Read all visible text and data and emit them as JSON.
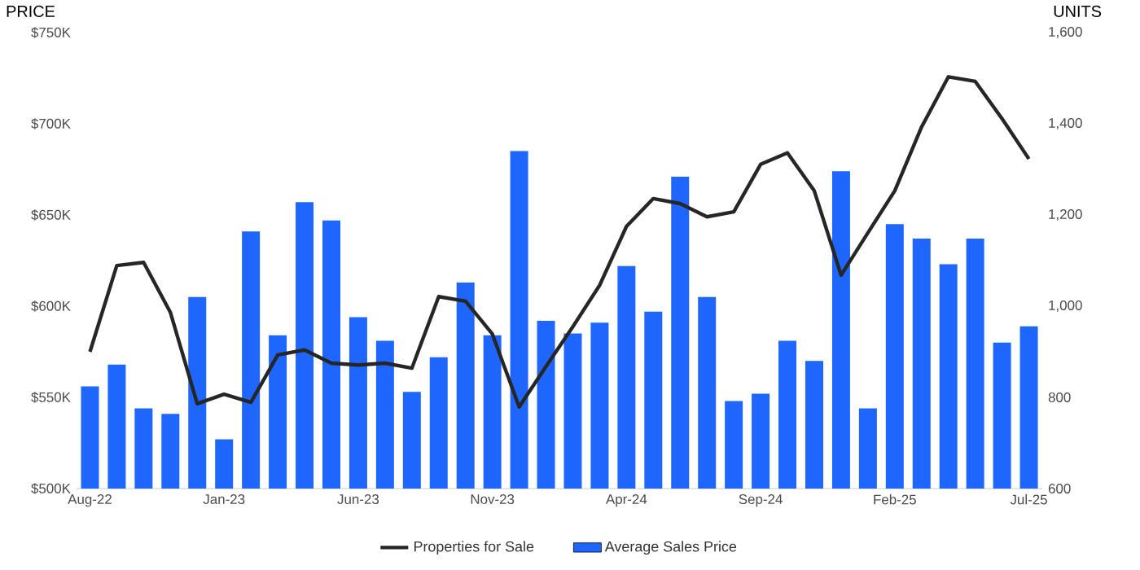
{
  "chart_data": {
    "type": "bar",
    "ylabel": "PRICE",
    "y2label": "UNITS",
    "categories": [
      "Aug-22",
      null,
      null,
      null,
      null,
      "Jan-23",
      null,
      null,
      null,
      null,
      "Jun-23",
      null,
      null,
      null,
      null,
      "Nov-23",
      null,
      null,
      null,
      null,
      "Apr-24",
      null,
      null,
      null,
      null,
      "Sep-24",
      null,
      null,
      null,
      null,
      "Feb-25",
      null,
      null,
      null,
      null,
      "Jul-25"
    ],
    "series": [
      {
        "name": "Properties for Sale",
        "type": "line",
        "axis": "y2",
        "color": "#262626",
        "values": [
          900,
          1089,
          1096,
          986,
          786,
          807,
          789,
          893,
          904,
          875,
          871,
          875,
          864,
          1021,
          1011,
          939,
          779,
          868,
          955,
          1046,
          1175,
          1236,
          1225,
          1196,
          1207,
          1311,
          1336,
          1253,
          1068,
          1161,
          1253,
          1393,
          1503,
          1493,
          1411,
          1323
        ]
      },
      {
        "name": "Average Sales Price",
        "color": "#1f66ff",
        "values": [
          556000,
          568000,
          544000,
          541000,
          605000,
          527000,
          641000,
          584000,
          657000,
          647000,
          594000,
          581000,
          553000,
          572000,
          613000,
          584000,
          685000,
          592000,
          585000,
          591000,
          622000,
          597000,
          671000,
          605000,
          548000,
          552000,
          581000,
          570000,
          674000,
          544000,
          645000,
          637000,
          623000,
          637000,
          580000,
          589000
        ]
      }
    ],
    "ylim": [
      500000,
      750000
    ],
    "yticks": [
      {
        "value": 500000,
        "label": "$500K"
      },
      {
        "value": 550000,
        "label": "$550K"
      },
      {
        "value": 600000,
        "label": "$600K"
      },
      {
        "value": 650000,
        "label": "$650K"
      },
      {
        "value": 700000,
        "label": "$700K"
      },
      {
        "value": 750000,
        "label": "$750K"
      }
    ],
    "y2lim": [
      600,
      1600
    ],
    "y2ticks": [
      {
        "value": 600,
        "label": "600"
      },
      {
        "value": 800,
        "label": "800"
      },
      {
        "value": 1000,
        "label": "1,000"
      },
      {
        "value": 1200,
        "label": "1,200"
      },
      {
        "value": 1400,
        "label": "1,400"
      },
      {
        "value": 1600,
        "label": "1,600"
      }
    ],
    "grid": false,
    "legend": "bottom"
  }
}
